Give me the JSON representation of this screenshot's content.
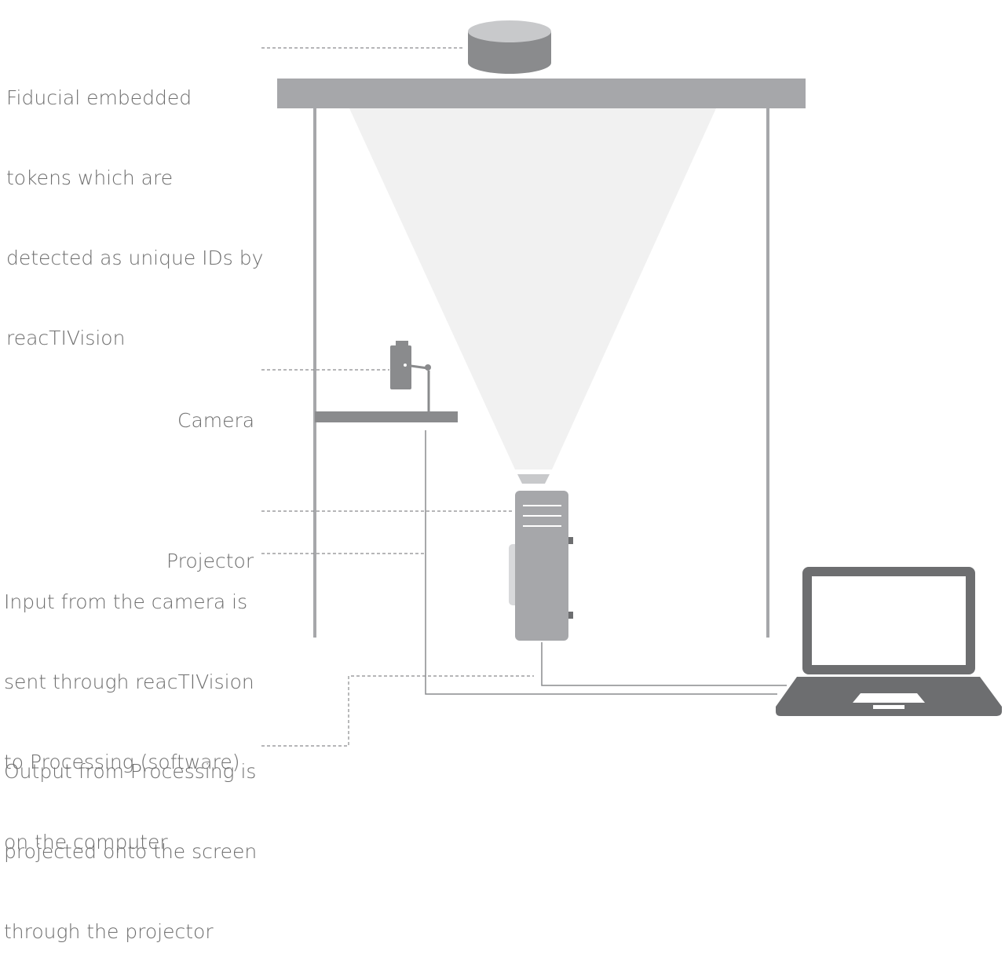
{
  "labels": {
    "fiducial": {
      "lines": [
        "Fiducial embedded",
        "tokens which are",
        "detected as unique IDs by",
        "reacTIVision"
      ]
    },
    "camera": {
      "lines": [
        "Camera"
      ]
    },
    "projector": {
      "lines": [
        "Projector"
      ]
    },
    "input": {
      "lines": [
        "Input from the camera is",
        "sent through reacTIVision",
        "to Processing (software)",
        "on the computer"
      ]
    },
    "output": {
      "lines": [
        "Output from Processing is",
        "projected onto the screen",
        "through the projector"
      ]
    }
  },
  "colors": {
    "text": "#6e6e6e",
    "frame": "#a6a7aa",
    "beam": "#f1f1f1",
    "dark": "#6d6e70",
    "token_top": "#c8c9cb",
    "token_side": "#8a8b8d",
    "laptop_screen": "#ffffff",
    "line": "#8a8b8d"
  }
}
